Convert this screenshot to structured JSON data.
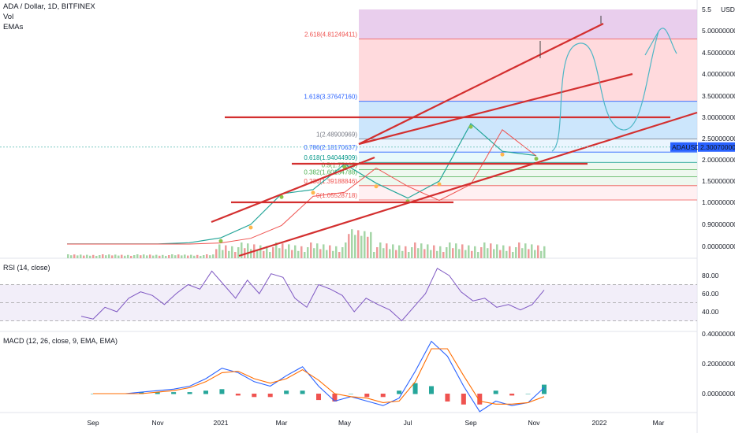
{
  "header": {
    "title": "ADA / Dollar, 1D, BITFINEX",
    "vol_label": "Vol",
    "emas_label": "EMAs",
    "currency": "USD"
  },
  "panes": {
    "rsi_label": "RSI (14, close)",
    "macd_label": "MACD (12, 26, close, 9, EMA, EMA)"
  },
  "price_tag": {
    "symbol": "ADAUSD",
    "value": "2.30070000",
    "color": "#2962ff"
  },
  "colors": {
    "trendline": "#d32f2f",
    "hand_drawn": "#4db6c6",
    "rsi_line": "#7e57c2",
    "macd_line": "#2962ff",
    "signal_line": "#ff6d00",
    "hist_up": "#26a69a",
    "hist_down": "#ef5350"
  },
  "chart_data": [
    {
      "type": "line",
      "name": "price",
      "x_ticks": [
        "Sep",
        "Nov",
        "2021",
        "Mar",
        "May",
        "Jul",
        "Sep",
        "Nov",
        "2022",
        "Mar"
      ],
      "y_ticks": [
        "5.5",
        "5.00000000",
        "4.50000000",
        "4.00000000",
        "3.50000000",
        "3.00000000",
        "2.50000000",
        "2.00000000",
        "1.50000000",
        "1.00000000",
        "0.90000000",
        "0.00000000"
      ],
      "current_price": 2.3007,
      "x": [
        "2020-08",
        "2020-09",
        "2020-10",
        "2020-11",
        "2020-12",
        "2021-01",
        "2021-02",
        "2021-03",
        "2021-04",
        "2021-05",
        "2021-06",
        "2021-07",
        "2021-08",
        "2021-09",
        "2021-10",
        "2021-11"
      ],
      "values": [
        0.1,
        0.1,
        0.1,
        0.1,
        0.15,
        0.35,
        0.9,
        1.2,
        1.3,
        1.9,
        1.45,
        1.1,
        1.5,
        2.85,
        2.2,
        2.1
      ],
      "fib_levels": [
        {
          "label": "2.618(4.81249411)",
          "value": 4.8125
        },
        {
          "label": "1.618(3.37647160)",
          "value": 3.3765
        },
        {
          "label": "1(2.48900969)",
          "value": 2.489
        },
        {
          "label": "0.786(2.18170637)",
          "value": 2.1817
        },
        {
          "label": "0.618(1.94044909)",
          "value": 1.9404
        },
        {
          "label": "0.5(1.77095)",
          "value": 1.771
        },
        {
          "label": "0.382(1.60154788)",
          "value": 1.6015
        },
        {
          "label": "0.236(1.39188846)",
          "value": 1.3919
        },
        {
          "label": "0(1.05528718)",
          "value": 1.0553
        }
      ]
    },
    {
      "type": "line",
      "name": "RSI",
      "y_ticks": [
        "80.00",
        "60.00",
        "40.00"
      ],
      "levels": [
        70,
        50,
        30
      ],
      "values": [
        35,
        32,
        45,
        40,
        55,
        62,
        58,
        48,
        60,
        70,
        65,
        85,
        70,
        55,
        75,
        60,
        82,
        78,
        55,
        45,
        70,
        65,
        58,
        40,
        55,
        48,
        42,
        30,
        45,
        60,
        88,
        80,
        62,
        52,
        55,
        45,
        48,
        42,
        48,
        64
      ]
    },
    {
      "type": "line",
      "name": "MACD",
      "y_ticks": [
        "0.40000000",
        "0.20000000",
        "0.00000000"
      ],
      "macd": [
        0.0,
        0.0,
        0.0,
        0.01,
        0.02,
        0.03,
        0.05,
        0.1,
        0.17,
        0.14,
        0.08,
        0.05,
        0.12,
        0.18,
        0.05,
        -0.05,
        -0.02,
        -0.05,
        -0.08,
        -0.03,
        0.15,
        0.35,
        0.25,
        0.05,
        -0.12,
        -0.05,
        -0.08,
        -0.06,
        0.04
      ],
      "signal": [
        0.0,
        0.0,
        0.0,
        0.0,
        0.01,
        0.02,
        0.04,
        0.08,
        0.14,
        0.15,
        0.1,
        0.07,
        0.1,
        0.16,
        0.09,
        0.0,
        -0.02,
        -0.03,
        -0.06,
        -0.05,
        0.08,
        0.3,
        0.3,
        0.12,
        -0.05,
        -0.07,
        -0.07,
        -0.06,
        -0.02
      ]
    }
  ]
}
